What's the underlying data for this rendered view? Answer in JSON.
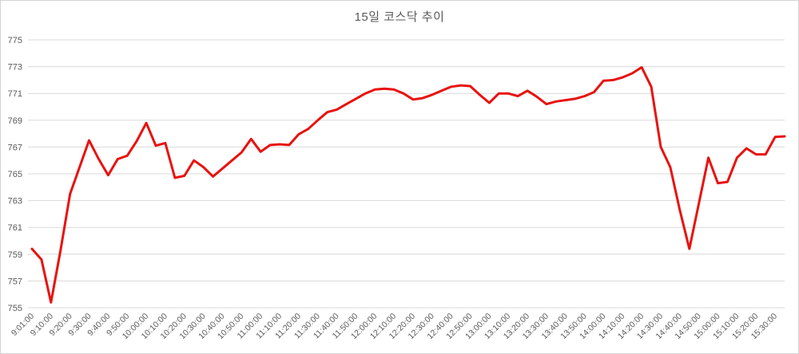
{
  "colors": {
    "line": "#e8120f",
    "grid": "#d9d9d9",
    "text": "#595959",
    "background": "#ffffff",
    "border": "#d4d4d4"
  },
  "chart_data": {
    "type": "line",
    "title": "15일 코스닥 추이",
    "xlabel": "",
    "ylabel": "",
    "ylim": [
      755,
      775
    ],
    "y_tick_step": 2,
    "y_ticks": [
      775,
      773,
      771,
      769,
      767,
      765,
      763,
      761,
      759,
      757,
      755
    ],
    "grid": "horizontal-only",
    "legend": "none",
    "label_every_n_points": 2,
    "x_tick_labels": [
      "9:01:00",
      "9:10:00",
      "9:20:00",
      "9:30:00",
      "9:40:00",
      "9:50:00",
      "10:00:00",
      "10:10:00",
      "10:20:00",
      "10:30:00",
      "10:40:00",
      "10:50:00",
      "11:00:00",
      "11:10:00",
      "11:20:00",
      "11:30:00",
      "11:40:00",
      "11:50:00",
      "12:00:00",
      "12:10:00",
      "12:20:00",
      "12:30:00",
      "12:40:00",
      "12:50:00",
      "13:00:00",
      "13:10:00",
      "13:20:00",
      "13:30:00",
      "13:40:00",
      "13:50:00",
      "14:00:00",
      "14:10:00",
      "14:20:00",
      "14:30:00",
      "14:40:00",
      "14:50:00",
      "15:00:00",
      "15:10:00",
      "15:20:00",
      "15:30:00"
    ],
    "x": [
      "9:01",
      "9:05",
      "9:10",
      "9:15",
      "9:20",
      "9:25",
      "9:30",
      "9:35",
      "9:40",
      "9:45",
      "9:50",
      "9:55",
      "10:00",
      "10:05",
      "10:10",
      "10:15",
      "10:20",
      "10:25",
      "10:30",
      "10:35",
      "10:40",
      "10:45",
      "10:50",
      "10:55",
      "11:00",
      "11:05",
      "11:10",
      "11:15",
      "11:20",
      "11:25",
      "11:30",
      "11:35",
      "11:40",
      "11:45",
      "11:50",
      "11:55",
      "12:00",
      "12:05",
      "12:10",
      "12:15",
      "12:20",
      "12:25",
      "12:30",
      "12:35",
      "12:40",
      "12:45",
      "12:50",
      "12:55",
      "13:00",
      "13:05",
      "13:10",
      "13:15",
      "13:20",
      "13:25",
      "13:30",
      "13:35",
      "13:40",
      "13:45",
      "13:50",
      "13:55",
      "14:00",
      "14:05",
      "14:10",
      "14:15",
      "14:20",
      "14:25",
      "14:30",
      "14:35",
      "14:40",
      "14:45",
      "14:50",
      "14:55",
      "15:00",
      "15:05",
      "15:10",
      "15:15",
      "15:20",
      "15:25",
      "15:30",
      "15:35"
    ],
    "values": [
      759.4,
      758.6,
      755.4,
      759.3,
      763.5,
      765.5,
      767.5,
      766.1,
      764.9,
      766.1,
      766.35,
      767.45,
      768.8,
      767.1,
      767.3,
      764.7,
      764.85,
      766.0,
      765.5,
      764.8,
      765.4,
      766.0,
      766.6,
      767.6,
      766.65,
      767.15,
      767.2,
      767.15,
      767.95,
      768.35,
      769.0,
      769.6,
      769.8,
      770.2,
      770.6,
      771.0,
      771.3,
      771.35,
      771.3,
      771.0,
      770.55,
      770.65,
      770.9,
      771.2,
      771.5,
      771.6,
      771.55,
      770.9,
      770.3,
      771.0,
      771.0,
      770.8,
      771.2,
      770.75,
      770.2,
      770.4,
      770.5,
      770.6,
      770.8,
      771.1,
      771.95,
      772.0,
      772.2,
      772.5,
      772.95,
      771.5,
      767.0,
      765.5,
      762.3,
      759.4,
      762.8,
      766.2,
      764.3,
      764.4,
      766.2,
      766.9,
      766.45,
      766.45,
      767.75,
      767.8
    ]
  }
}
